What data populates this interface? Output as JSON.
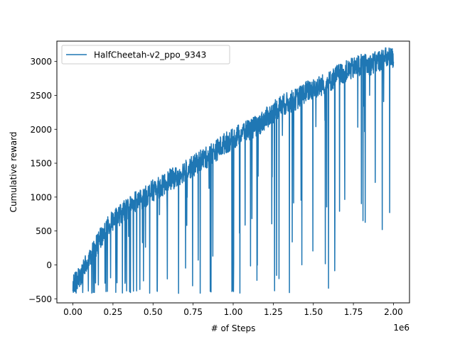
{
  "chart_data": {
    "type": "line",
    "title": "",
    "xlabel": "# of Steps",
    "ylabel": "Cumulative reward",
    "x_offset_label": "1e6",
    "xlim": [
      -0.1,
      2.1
    ],
    "ylim": [
      -560,
      3300
    ],
    "x_ticks": [
      0.0,
      0.25,
      0.5,
      0.75,
      1.0,
      1.25,
      1.5,
      1.75,
      2.0
    ],
    "x_tick_labels": [
      "0.00",
      "0.25",
      "0.50",
      "0.75",
      "1.00",
      "1.25",
      "1.50",
      "1.75",
      "2.00"
    ],
    "y_ticks": [
      -500,
      0,
      500,
      1000,
      1500,
      2000,
      2500,
      3000
    ],
    "y_tick_labels": [
      "−500",
      "0",
      "500",
      "1000",
      "1500",
      "2000",
      "2500",
      "3000"
    ],
    "grid": false,
    "legend_position": "top-left",
    "series": [
      {
        "name": "HalfCheetah-v2_ppo_9343",
        "color": "#1f77b4",
        "trend_x": [
          0.0,
          0.05,
          0.1,
          0.15,
          0.2,
          0.25,
          0.3,
          0.35,
          0.4,
          0.45,
          0.5,
          0.55,
          0.6,
          0.65,
          0.7,
          0.75,
          0.8,
          0.85,
          0.9,
          0.95,
          1.0,
          1.05,
          1.1,
          1.15,
          1.2,
          1.25,
          1.3,
          1.35,
          1.4,
          1.45,
          1.5,
          1.55,
          1.6,
          1.65,
          1.7,
          1.75,
          1.8,
          1.85,
          1.9,
          1.95,
          2.0
        ],
        "trend_y": [
          -300,
          -150,
          100,
          300,
          500,
          650,
          750,
          850,
          950,
          1000,
          1100,
          1150,
          1250,
          1300,
          1400,
          1450,
          1550,
          1600,
          1700,
          1800,
          1850,
          1950,
          2000,
          2050,
          2150,
          2250,
          2350,
          2400,
          2450,
          2550,
          2600,
          2650,
          2700,
          2800,
          2850,
          2900,
          2950,
          2950,
          3000,
          3050,
          3050
        ]
      }
    ]
  }
}
